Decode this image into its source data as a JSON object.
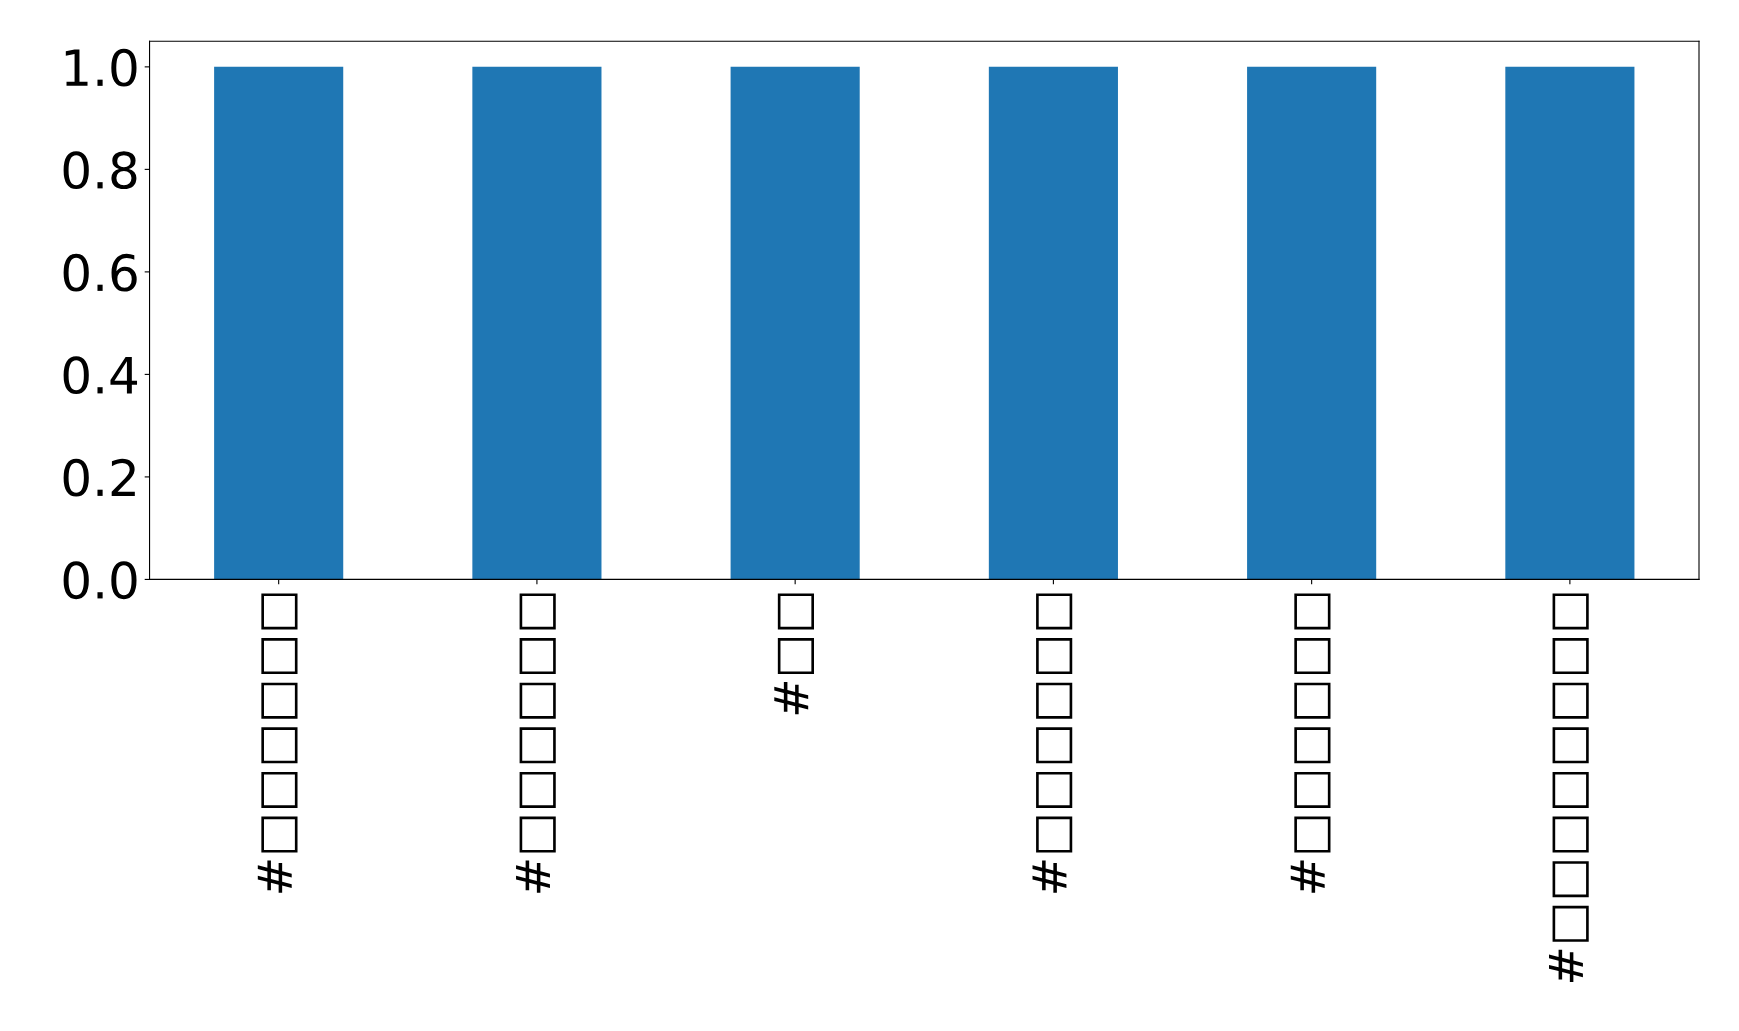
{
  "chart_data": {
    "type": "bar",
    "categories": [
      "#□□□□□□",
      "#□□□□□□",
      "#□□",
      "#□□□□□□",
      "#□□□□□□",
      "#□□□□□□□□"
    ],
    "values": [
      1,
      1,
      1,
      1,
      1,
      1
    ],
    "color": "#1f77b4",
    "ylim": [
      0,
      1.05
    ],
    "yticks": [
      {
        "value": 0,
        "label": "0.0"
      },
      {
        "value": 0.2,
        "label": "0.2"
      },
      {
        "value": 0.4,
        "label": "0.4"
      },
      {
        "value": 0.6,
        "label": "0.6"
      },
      {
        "value": 0.8,
        "label": "0.8"
      },
      {
        "value": 1,
        "label": "1.0"
      }
    ],
    "grid": false,
    "legend": false
  }
}
